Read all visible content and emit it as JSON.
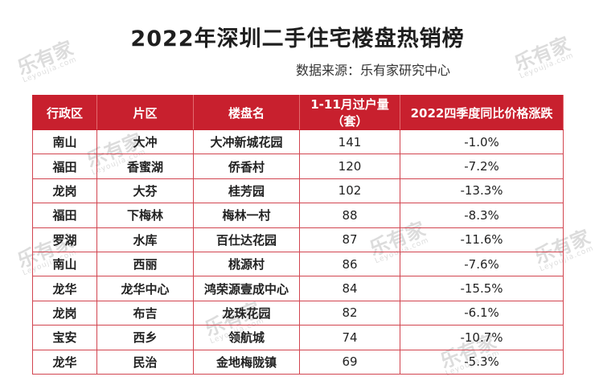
{
  "title": "2022年深圳二手住宅楼盘热销榜",
  "source": "数据来源：乐有家研究中心",
  "watermark": {
    "text": "乐有家",
    "sub": "Leyoujia.com"
  },
  "table": {
    "headers": [
      "行政区",
      "片区",
      "楼盘名",
      "1-11月过户量（套）",
      "2022四季度同比价格涨跌"
    ],
    "rows": [
      [
        "南山",
        "大冲",
        "大冲新城花园",
        "141",
        "-1.0%"
      ],
      [
        "福田",
        "香蜜湖",
        "侨香村",
        "120",
        "-7.2%"
      ],
      [
        "龙岗",
        "大芬",
        "桂芳园",
        "102",
        "-13.3%"
      ],
      [
        "福田",
        "下梅林",
        "梅林一村",
        "88",
        "-8.3%"
      ],
      [
        "罗湖",
        "水库",
        "百仕达花园",
        "87",
        "-11.6%"
      ],
      [
        "南山",
        "西丽",
        "桃源村",
        "86",
        "-7.6%"
      ],
      [
        "龙华",
        "龙华中心",
        "鸿荣源壹成中心",
        "84",
        "-15.5%"
      ],
      [
        "龙岗",
        "布吉",
        "龙珠花园",
        "82",
        "-6.1%"
      ],
      [
        "宝安",
        "西乡",
        "领航城",
        "74",
        "-10.7%"
      ],
      [
        "龙华",
        "民治",
        "金地梅陇镇",
        "69",
        "-5.3%"
      ]
    ]
  },
  "colors": {
    "header_bg": "#c8202e",
    "border": "#d24550"
  }
}
